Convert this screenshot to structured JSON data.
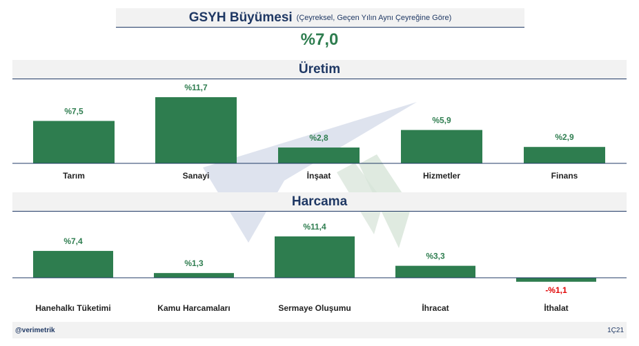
{
  "title": {
    "main": "GSYH Büyümesi",
    "sub": "(Çeyreksel, Geçen Yılın Aynı Çeyreğine Göre)"
  },
  "headline": "%7,0",
  "sections": {
    "production": "Üretim",
    "expenditure": "Harcama"
  },
  "footer": {
    "handle": "@verimetrik",
    "period": "1Ç21"
  },
  "colors": {
    "bar": "#2e7d4f",
    "positive_label": "#2e7d4f",
    "negative_label": "#e00000",
    "title": "#1f3864"
  },
  "chart_data": [
    {
      "type": "bar",
      "title": "Üretim",
      "categories": [
        "Tarım",
        "Sanayi",
        "İnşaat",
        "Hizmetler",
        "Finans"
      ],
      "values": [
        7.5,
        11.7,
        2.8,
        5.9,
        2.9
      ],
      "value_labels": [
        "%7,5",
        "%11,7",
        "%2,8",
        "%5,9",
        "%2,9"
      ],
      "unit": "%"
    },
    {
      "type": "bar",
      "title": "Harcama",
      "categories": [
        "Hanehalkı Tüketimi",
        "Kamu Harcamaları",
        "Sermaye Oluşumu",
        "İhracat",
        "İthalat"
      ],
      "values": [
        7.4,
        1.3,
        11.4,
        3.3,
        -1.1
      ],
      "value_labels": [
        "%7,4",
        "%1,3",
        "%11,4",
        "%3,3",
        "-%1,1"
      ],
      "unit": "%"
    }
  ]
}
